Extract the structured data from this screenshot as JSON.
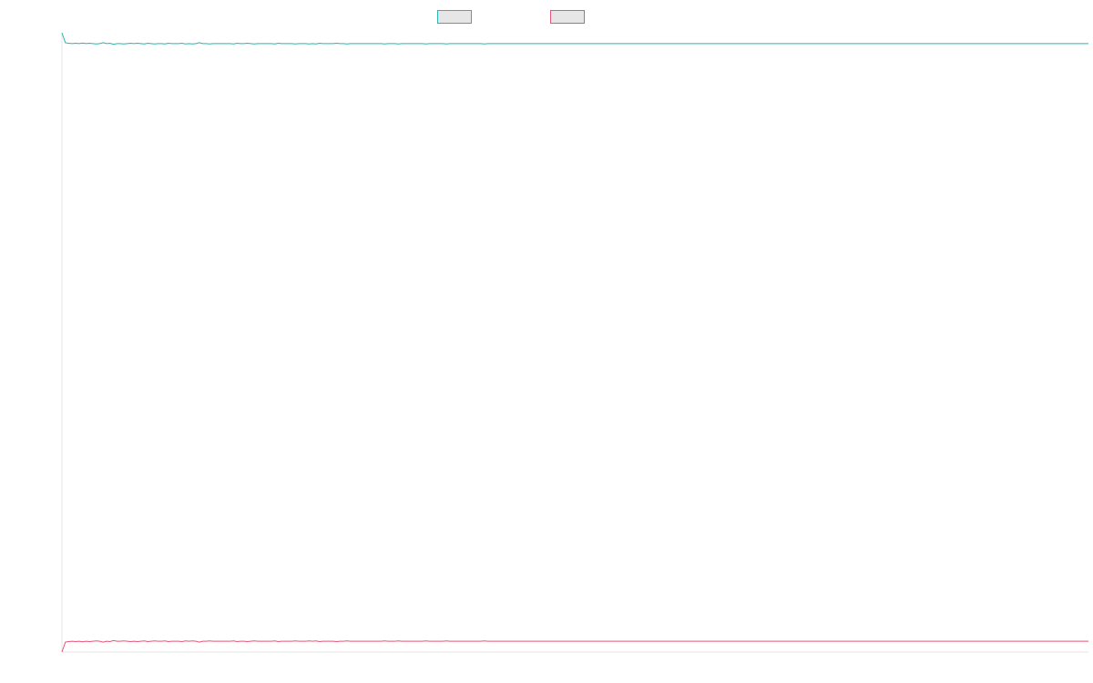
{
  "chart_data": {
    "type": "line",
    "title": "",
    "xlabel": "",
    "ylabel": "",
    "grid": false,
    "legend_position": "top-center",
    "x_points": 300,
    "ylim": [
      -100,
      100
    ],
    "series": [
      {
        "color": "#2bb5b0",
        "fill": "#e6e6e6",
        "values": [
          100,
          96.8,
          96.6,
          96.5,
          96.6,
          96.5,
          96.7,
          96.5,
          96.6,
          96.5,
          96.4,
          96.5,
          96.8,
          96.5,
          96.6,
          96.3,
          96.5,
          96.5,
          96.4,
          96.5,
          96.6,
          96.5,
          96.6,
          96.5,
          96.4,
          96.6,
          96.5,
          96.4,
          96.5,
          96.5,
          96.4,
          96.6,
          96.5,
          96.5,
          96.5,
          96.6,
          96.4,
          96.5,
          96.4,
          96.5,
          96.8,
          96.5,
          96.5,
          96.4,
          96.5,
          96.5,
          96.5,
          96.5,
          96.5,
          96.5,
          96.4,
          96.6,
          96.5,
          96.5,
          96.6,
          96.5,
          96.4,
          96.5,
          96.5,
          96.5,
          96.5,
          96.5,
          96.4,
          96.6,
          96.5,
          96.5,
          96.5,
          96.5,
          96.4,
          96.5,
          96.5,
          96.5,
          96.4,
          96.5,
          96.4,
          96.6,
          96.5,
          96.5,
          96.5,
          96.5,
          96.6,
          96.5,
          96.5,
          96.4,
          96.5,
          96.5,
          96.5,
          96.5,
          96.5,
          96.5,
          96.5,
          96.5,
          96.5,
          96.5,
          96.4,
          96.5,
          96.5,
          96.5,
          96.4,
          96.5,
          96.5,
          96.5,
          96.5,
          96.5,
          96.5,
          96.5,
          96.4,
          96.5,
          96.5,
          96.5,
          96.5,
          96.5,
          96.4,
          96.5,
          96.5,
          96.5,
          96.5,
          96.5,
          96.5,
          96.5,
          96.5,
          96.5,
          96.5,
          96.4,
          96.5,
          96.5,
          96.5,
          96.5,
          96.5,
          96.5,
          96.5,
          96.5,
          96.5,
          96.5,
          96.5,
          96.5,
          96.5,
          96.5,
          96.5,
          96.5,
          96.5,
          96.5,
          96.5,
          96.5,
          96.5,
          96.5,
          96.5,
          96.5,
          96.5,
          96.5,
          96.5,
          96.5,
          96.5,
          96.5,
          96.5,
          96.5,
          96.5,
          96.5,
          96.5,
          96.5,
          96.5,
          96.5,
          96.5,
          96.5,
          96.5,
          96.5,
          96.5,
          96.5,
          96.5,
          96.5,
          96.5,
          96.5,
          96.5,
          96.5,
          96.5,
          96.5,
          96.5,
          96.5,
          96.5,
          96.5,
          96.5,
          96.5,
          96.5,
          96.5,
          96.5,
          96.5,
          96.5,
          96.5,
          96.5,
          96.5,
          96.5,
          96.5,
          96.5,
          96.5,
          96.5,
          96.5,
          96.5,
          96.5,
          96.5,
          96.5,
          96.5,
          96.5,
          96.5,
          96.5,
          96.5,
          96.5,
          96.5,
          96.5,
          96.5,
          96.5,
          96.5,
          96.5,
          96.5,
          96.5,
          96.5,
          96.5,
          96.5,
          96.5,
          96.5,
          96.5,
          96.5,
          96.5,
          96.5,
          96.5,
          96.5,
          96.5,
          96.5,
          96.5,
          96.5,
          96.5,
          96.5,
          96.5,
          96.5,
          96.5,
          96.5,
          96.5,
          96.5,
          96.5,
          96.5,
          96.5,
          96.5,
          96.5,
          96.5,
          96.5,
          96.5,
          96.5,
          96.5,
          96.5,
          96.5,
          96.5,
          96.5,
          96.5,
          96.5,
          96.5,
          96.5,
          96.5,
          96.5,
          96.5,
          96.5,
          96.5,
          96.5,
          96.5,
          96.5,
          96.5,
          96.5,
          96.5,
          96.5,
          96.5,
          96.5,
          96.5,
          96.5,
          96.5,
          96.5,
          96.5,
          96.5,
          96.5,
          96.5,
          96.5,
          96.5,
          96.5,
          96.5,
          96.5,
          96.5,
          96.5,
          96.5,
          96.5,
          96.5,
          96.5,
          96.5,
          96.5,
          96.5,
          96.5,
          96.5,
          96.5,
          96.5,
          96.5,
          96.5,
          96.5,
          96.5,
          96.5
        ]
      },
      {
        "color": "#e8547a",
        "fill": "#e6e6e6",
        "values": [
          -100,
          -96.8,
          -96.6,
          -96.5,
          -96.6,
          -96.5,
          -96.7,
          -96.5,
          -96.6,
          -96.5,
          -96.4,
          -96.5,
          -96.8,
          -96.5,
          -96.6,
          -96.3,
          -96.5,
          -96.5,
          -96.4,
          -96.5,
          -96.6,
          -96.5,
          -96.6,
          -96.5,
          -96.4,
          -96.6,
          -96.5,
          -96.4,
          -96.5,
          -96.5,
          -96.4,
          -96.6,
          -96.5,
          -96.5,
          -96.5,
          -96.6,
          -96.4,
          -96.5,
          -96.4,
          -96.5,
          -96.8,
          -96.5,
          -96.5,
          -96.4,
          -96.5,
          -96.5,
          -96.5,
          -96.5,
          -96.5,
          -96.5,
          -96.4,
          -96.6,
          -96.5,
          -96.5,
          -96.6,
          -96.5,
          -96.4,
          -96.5,
          -96.5,
          -96.5,
          -96.5,
          -96.5,
          -96.4,
          -96.6,
          -96.5,
          -96.5,
          -96.5,
          -96.5,
          -96.4,
          -96.5,
          -96.5,
          -96.5,
          -96.4,
          -96.5,
          -96.4,
          -96.6,
          -96.5,
          -96.5,
          -96.5,
          -96.5,
          -96.6,
          -96.5,
          -96.5,
          -96.4,
          -96.5,
          -96.5,
          -96.5,
          -96.5,
          -96.5,
          -96.5,
          -96.5,
          -96.5,
          -96.5,
          -96.5,
          -96.4,
          -96.5,
          -96.5,
          -96.5,
          -96.4,
          -96.5,
          -96.5,
          -96.5,
          -96.5,
          -96.5,
          -96.5,
          -96.5,
          -96.4,
          -96.5,
          -96.5,
          -96.5,
          -96.5,
          -96.5,
          -96.4,
          -96.5,
          -96.5,
          -96.5,
          -96.5,
          -96.5,
          -96.5,
          -96.5,
          -96.5,
          -96.5,
          -96.5,
          -96.4,
          -96.5,
          -96.5,
          -96.5,
          -96.5,
          -96.5,
          -96.5,
          -96.5,
          -96.5,
          -96.5,
          -96.5,
          -96.5,
          -96.5,
          -96.5,
          -96.5,
          -96.5,
          -96.5,
          -96.5,
          -96.5,
          -96.5,
          -96.5,
          -96.5,
          -96.5,
          -96.5,
          -96.5,
          -96.5,
          -96.5,
          -96.5,
          -96.5,
          -96.5,
          -96.5,
          -96.5,
          -96.5,
          -96.5,
          -96.5,
          -96.5,
          -96.5,
          -96.5,
          -96.5,
          -96.5,
          -96.5,
          -96.5,
          -96.5,
          -96.5,
          -96.5,
          -96.5,
          -96.5,
          -96.5,
          -96.5,
          -96.5,
          -96.5,
          -96.5,
          -96.5,
          -96.5,
          -96.5,
          -96.5,
          -96.5,
          -96.5,
          -96.5,
          -96.5,
          -96.5,
          -96.5,
          -96.5,
          -96.5,
          -96.5,
          -96.5,
          -96.5,
          -96.5,
          -96.5,
          -96.5,
          -96.5,
          -96.5,
          -96.5,
          -96.5,
          -96.5,
          -96.5,
          -96.5,
          -96.5,
          -96.5,
          -96.5,
          -96.5,
          -96.5,
          -96.5,
          -96.5,
          -96.5,
          -96.5,
          -96.5,
          -96.5,
          -96.5,
          -96.5,
          -96.5,
          -96.5,
          -96.5,
          -96.5,
          -96.5,
          -96.5,
          -96.5,
          -96.5,
          -96.5,
          -96.5,
          -96.5,
          -96.5,
          -96.5,
          -96.5,
          -96.5,
          -96.5,
          -96.5,
          -96.5,
          -96.5,
          -96.5,
          -96.5,
          -96.5,
          -96.5,
          -96.5,
          -96.5,
          -96.5,
          -96.5,
          -96.5,
          -96.5,
          -96.5,
          -96.5,
          -96.5,
          -96.5,
          -96.5,
          -96.5,
          -96.5,
          -96.5,
          -96.5,
          -96.5,
          -96.5,
          -96.5,
          -96.5,
          -96.5,
          -96.5,
          -96.5,
          -96.5,
          -96.5,
          -96.5,
          -96.5,
          -96.5,
          -96.5,
          -96.5,
          -96.5,
          -96.5,
          -96.5,
          -96.5,
          -96.5,
          -96.5,
          -96.5,
          -96.5,
          -96.5,
          -96.5,
          -96.5,
          -96.5,
          -96.5,
          -96.5,
          -96.5,
          -96.5,
          -96.5,
          -96.5,
          -96.5,
          -96.5,
          -96.5,
          -96.5,
          -96.5,
          -96.5,
          -96.5,
          -96.5,
          -96.5,
          -96.5,
          -96.5,
          -96.5,
          -96.5,
          -96.5,
          -96.5,
          -96.5,
          -96.5
        ]
      }
    ]
  }
}
